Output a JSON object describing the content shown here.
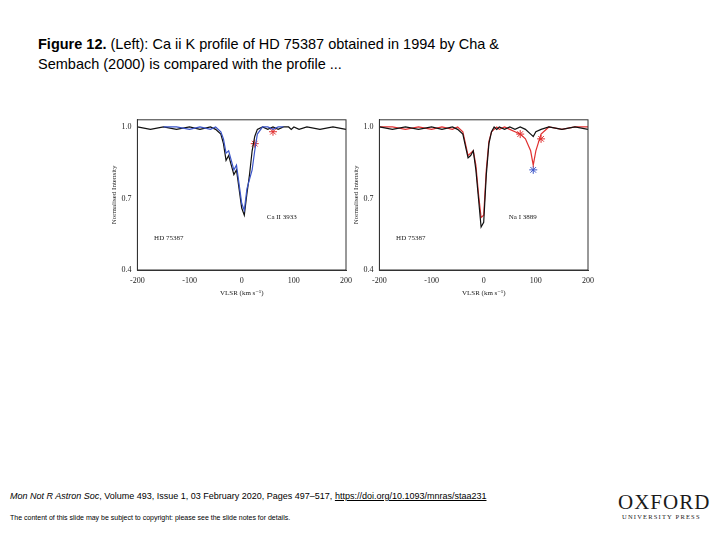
{
  "slide": {
    "title_bold": "Figure 12.",
    "title": "(Left): Ca ii K profile of HD 75387 obtained in 1994 by Cha & Sembach (2000) is compared with the profile ...",
    "journal": "Mon Not R Astron Soc",
    "citation": ", Volume 493, Issue 1, 03 February 2020, Pages 497–517, ",
    "link": "https://doi.org/10.1093/mnras/staa231",
    "copyright": "The content of this slide may be subject to copyright: please see the slide notes for details.",
    "logo": [
      "OXFORD",
      "UNIVERSITY PRESS"
    ]
  },
  "chart_data": [
    {
      "type": "line",
      "x_label": "VLSR (km s⁻¹)",
      "y_label": "Normalised Intensity",
      "annotations": [
        "Ca II 3933",
        "HD 75387"
      ],
      "x": [
        -200,
        -175,
        -150,
        -125,
        -100,
        -80,
        -60,
        -50,
        -40,
        -35,
        -30,
        -25,
        -20,
        -15,
        -10,
        -5,
        0,
        5,
        10,
        15,
        20,
        25,
        30,
        40,
        50,
        60,
        70,
        80,
        90,
        95,
        100,
        110,
        125,
        150,
        175,
        200
      ],
      "xlim": [
        -200,
        200
      ],
      "xticks": [
        -200,
        -100,
        0,
        100,
        200
      ],
      "ylim": [
        0.4,
        1.03
      ],
      "yticks": [
        0.4,
        0.7,
        {
          "value": 1,
          "label": "1.0"
        }
      ],
      "grid": false,
      "series": [
        {
          "color": "#3b55c8",
          "line_style": "solid",
          "values": [
            null,
            null,
            1.0,
            1.0,
            0.99,
            1.0,
            0.99,
            1.0,
            0.98,
            0.95,
            0.89,
            0.9,
            0.86,
            0.82,
            0.84,
            0.76,
            0.68,
            0.65,
            0.74,
            0.78,
            0.82,
            0.9,
            0.97,
            1.0,
            1.0,
            0.99,
            1.0,
            1.0,
            null,
            null,
            null,
            null,
            null,
            null,
            null,
            null
          ]
        },
        {
          "color": "#111111",
          "line_style": "solid",
          "values": [
            1.0,
            0.99,
            1.0,
            0.99,
            1.0,
            0.99,
            1.0,
            0.99,
            0.97,
            0.93,
            0.86,
            0.88,
            0.84,
            0.8,
            0.82,
            0.74,
            0.66,
            0.63,
            0.72,
            0.8,
            0.9,
            0.96,
            0.99,
            1.0,
            0.99,
            1.0,
            0.99,
            1.0,
            1.0,
            0.99,
            1.0,
            0.99,
            1.0,
            0.99,
            1.0,
            0.99
          ]
        },
        {
          "color": "#e03030",
          "marker": "star",
          "values": [
            null,
            null,
            null,
            null,
            null,
            null,
            null,
            null,
            null,
            null,
            null,
            null,
            null,
            null,
            null,
            null,
            null,
            null,
            null,
            null,
            null,
            0.93,
            null,
            null,
            null,
            0.98,
            null,
            null,
            null,
            null,
            null,
            null,
            null,
            null,
            null,
            null
          ]
        }
      ]
    },
    {
      "type": "line",
      "x_label": "VLSR (km s⁻¹)",
      "y_label": "Normalised Intensity",
      "annotations": [
        "Na I 3889",
        "HD 75387"
      ],
      "x": [
        -200,
        -175,
        -150,
        -125,
        -100,
        -80,
        -60,
        -50,
        -40,
        -35,
        -30,
        -25,
        -20,
        -15,
        -10,
        -5,
        0,
        5,
        10,
        15,
        20,
        25,
        30,
        40,
        50,
        60,
        70,
        80,
        90,
        95,
        100,
        110,
        125,
        150,
        175,
        200
      ],
      "xlim": [
        -200,
        200
      ],
      "xticks": [
        -200,
        -100,
        0,
        100,
        200
      ],
      "ylim": [
        0.4,
        1.03
      ],
      "yticks": [
        0.4,
        0.7,
        {
          "value": 1,
          "label": "1.0"
        }
      ],
      "grid": false,
      "series": [
        {
          "color": "#111111",
          "line_style": "solid",
          "values": [
            1.0,
            0.99,
            1.0,
            0.99,
            1.0,
            0.99,
            1.0,
            0.99,
            0.97,
            0.92,
            0.87,
            0.88,
            0.9,
            0.82,
            0.7,
            0.58,
            0.6,
            0.8,
            0.93,
            0.98,
            1.0,
            0.99,
            1.0,
            0.99,
            1.0,
            0.99,
            1.0,
            0.99,
            0.97,
            0.96,
            0.98,
            0.99,
            1.0,
            0.99,
            1.0,
            0.99
          ]
        },
        {
          "color": "#e03030",
          "line_style": "solid",
          "values": [
            1.0,
            1.0,
            0.99,
            1.0,
            0.99,
            1.0,
            0.99,
            1.0,
            0.98,
            0.93,
            0.88,
            0.89,
            0.9,
            0.84,
            0.72,
            0.62,
            0.63,
            0.82,
            0.94,
            0.98,
            0.99,
            1.0,
            0.99,
            1.0,
            0.99,
            0.98,
            0.97,
            0.95,
            0.9,
            0.84,
            0.9,
            0.97,
            1.0,
            0.99,
            1.0,
            1.0
          ]
        },
        {
          "color": "#e03030",
          "marker": "star",
          "values": [
            null,
            null,
            null,
            null,
            null,
            null,
            null,
            null,
            null,
            null,
            null,
            null,
            null,
            null,
            null,
            null,
            null,
            null,
            null,
            null,
            null,
            null,
            null,
            null,
            null,
            null,
            0.97,
            null,
            null,
            null,
            null,
            0.95,
            null,
            null,
            null,
            null
          ]
        },
        {
          "color": "#3b55c8",
          "marker": "star",
          "values": [
            null,
            null,
            null,
            null,
            null,
            null,
            null,
            null,
            null,
            null,
            null,
            null,
            null,
            null,
            null,
            null,
            null,
            null,
            null,
            null,
            null,
            null,
            null,
            null,
            null,
            null,
            null,
            null,
            null,
            0.82,
            null,
            null,
            null,
            null,
            null,
            null
          ]
        }
      ]
    }
  ]
}
